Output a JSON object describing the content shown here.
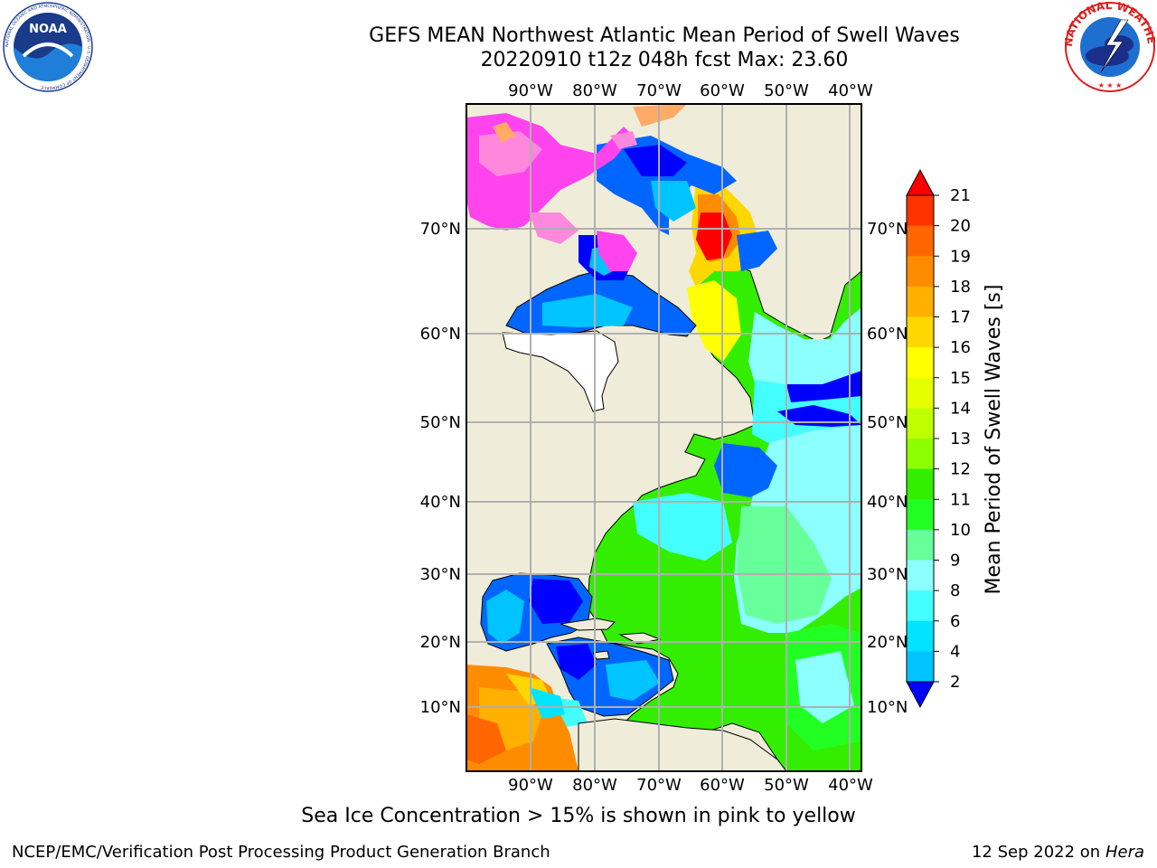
{
  "header": {
    "title_line1": "GEFS MEAN Northwest Atlantic Mean Period of Swell Waves",
    "title_line2": "20220910 t12z 048h fcst   Max: 23.60"
  },
  "map": {
    "lon_labels": [
      "90°W",
      "80°W",
      "70°W",
      "60°W",
      "50°W",
      "40°W"
    ],
    "lat_labels": [
      "70°N",
      "60°N",
      "50°N",
      "40°N",
      "30°N",
      "20°N",
      "10°N"
    ]
  },
  "colorbar": {
    "label": "Mean Period of Swell Waves [s]",
    "ticks": [
      "21",
      "20",
      "19",
      "18",
      "17",
      "16",
      "15",
      "14",
      "13",
      "12",
      "11",
      "10",
      "9",
      "8",
      "6",
      "4",
      "2"
    ],
    "colors": [
      "#ff0000",
      "#ff3300",
      "#ff6600",
      "#ff8c00",
      "#ffb000",
      "#ffd700",
      "#ffff00",
      "#e6ff00",
      "#c0ff00",
      "#8cff00",
      "#33ee00",
      "#22ff22",
      "#66ff99",
      "#8cffff",
      "#44ffff",
      "#00e4ff",
      "#00c4ff",
      "#0066ff",
      "#0000ff"
    ]
  },
  "caption": "Sea Ice Concentration > 15% is shown in pink to yellow",
  "footer": {
    "left": "NCEP/EMC/Verification Post Processing Product Generation Branch",
    "date": "12 Sep 2022 on",
    "host": "Hera"
  },
  "logos": {
    "noaa_text": "NOAA",
    "noaa_ring_text": "NATIONAL OCEANIC AND ATMOSPHERIC ADMINISTRATION · U.S. DEPARTMENT OF COMMERCE",
    "nws_ring_text": "NATIONAL WEATHER SERVICE"
  }
}
